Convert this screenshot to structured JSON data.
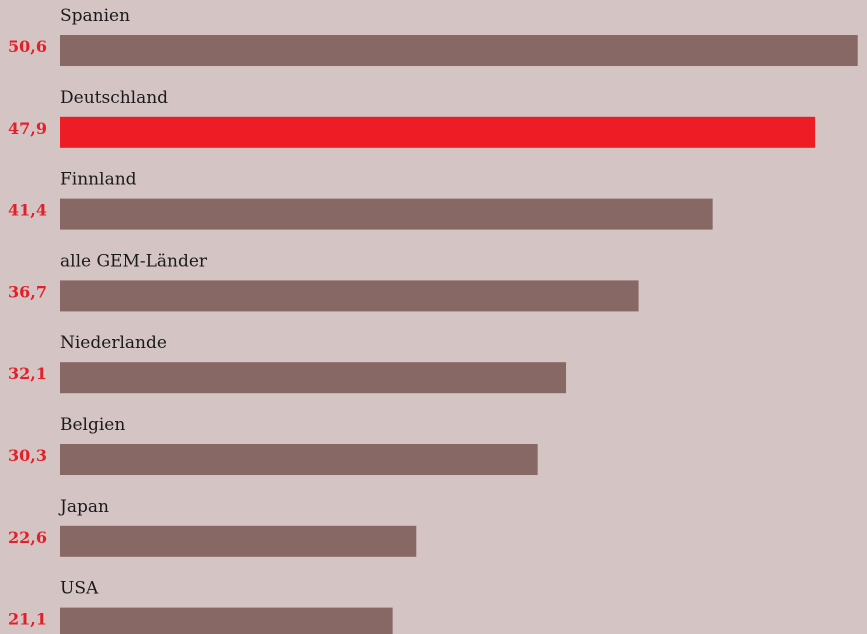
{
  "chart_data": {
    "type": "bar",
    "orientation": "horizontal",
    "categories": [
      "Spanien",
      "Deutschland",
      "Finnland",
      "alle GEM-Länder",
      "Niederlande",
      "Belgien",
      "Japan",
      "USA"
    ],
    "values": [
      50.6,
      47.9,
      41.4,
      36.7,
      32.1,
      30.3,
      22.6,
      21.1
    ],
    "value_labels": [
      "50,6",
      "47,9",
      "41,4",
      "36,7",
      "32,1",
      "30,3",
      "22,6",
      "21,1"
    ],
    "highlight_category": "Deutschland",
    "title": "",
    "xlabel": "",
    "ylabel": "",
    "xlim": [
      0,
      51
    ],
    "grid": false,
    "legend": "none"
  },
  "colors": {
    "background": "#d4c4c4",
    "bar": "#876865",
    "highlight_bar": "#ee1c25",
    "value_text": "#e3202a",
    "label_text": "#1a1a1a"
  }
}
